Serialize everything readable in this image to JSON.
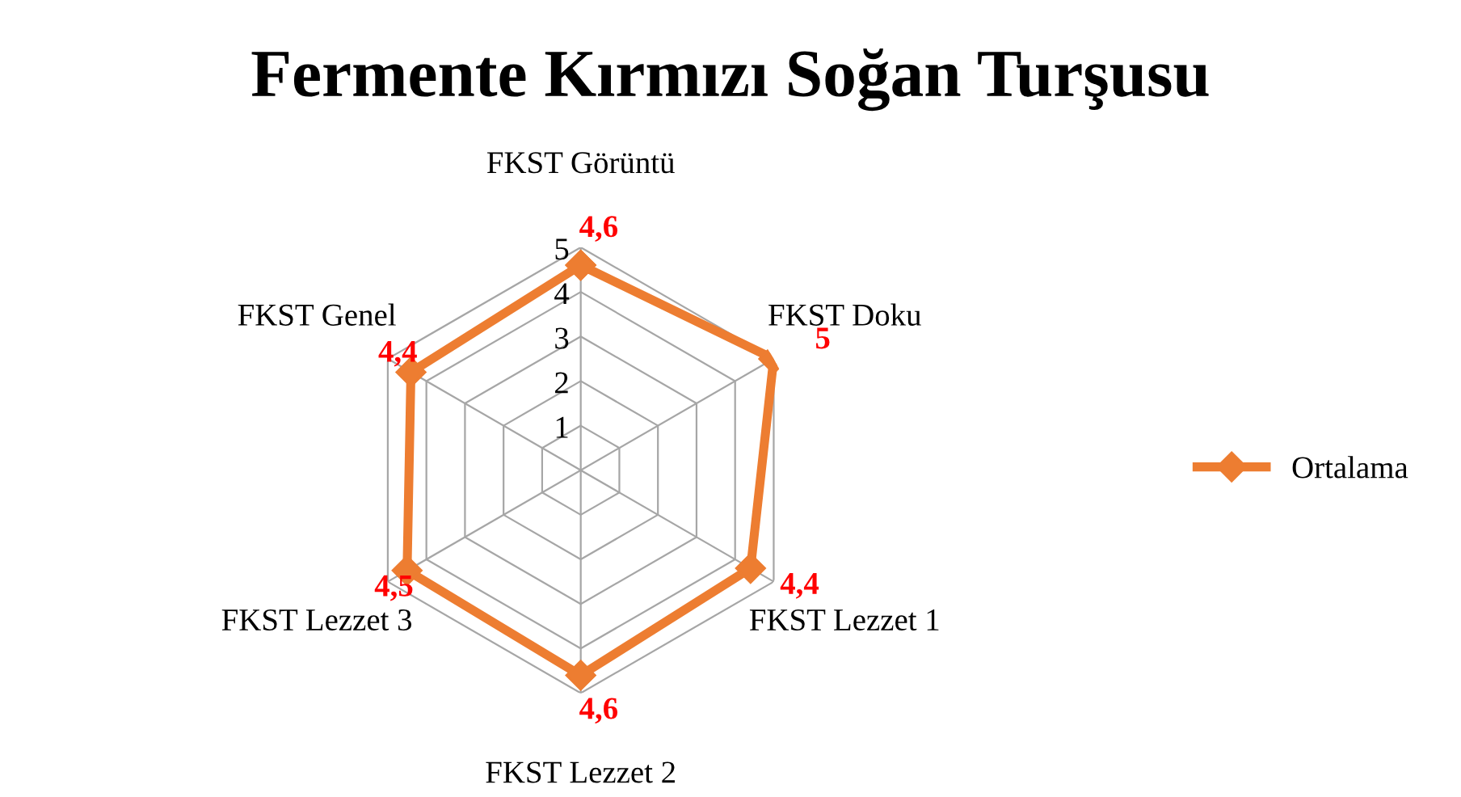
{
  "chart_data": {
    "type": "radar",
    "title": "Fermente Kırmızı Soğan Turşusu",
    "categories": [
      "FKST Görüntü",
      "FKST Doku",
      "FKST Lezzet 1",
      "FKST Lezzet 2",
      "FKST Lezzet 3",
      "FKST Genel"
    ],
    "series": [
      {
        "name": "Ortalama",
        "color": "#ed7d31",
        "values": [
          4.6,
          5,
          4.4,
          4.6,
          4.5,
          4.4
        ],
        "value_labels": [
          "4,6",
          "5",
          "4,4",
          "4,6",
          "4,5",
          "4,4"
        ]
      }
    ],
    "ylim": [
      0,
      5
    ],
    "yticks": [
      1,
      2,
      3,
      4,
      5
    ],
    "grid": true,
    "legend": "right",
    "marker": "diamond",
    "line_style": "solid"
  }
}
